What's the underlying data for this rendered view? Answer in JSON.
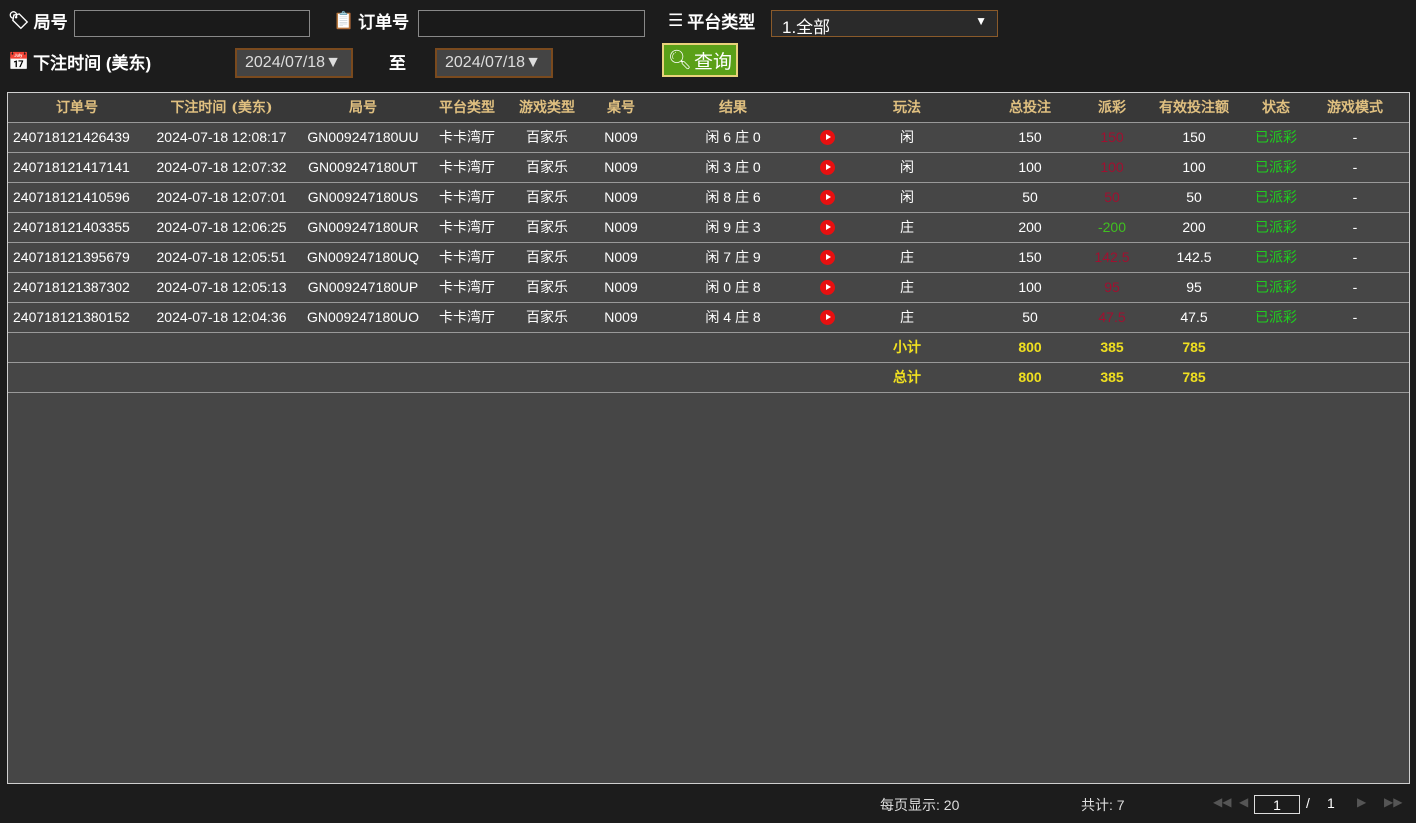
{
  "filters": {
    "round_label": "局号",
    "round_value": "",
    "order_label": "订单号",
    "order_value": "",
    "platform_label": "平台类型",
    "platform_value": "1.全部",
    "time_label": "下注时间 (美东)",
    "date_from": "2024/07/18▼",
    "to_label": "至",
    "date_to": "2024/07/18▼",
    "query_label": "查询"
  },
  "table": {
    "headers": [
      "订单号",
      "下注时间 (美东)",
      "局号",
      "平台类型",
      "游戏类型",
      "桌号",
      "结果",
      "",
      "玩法",
      "总投注",
      "派彩",
      "有效投注额",
      "状态",
      "游戏模式"
    ],
    "rows": [
      [
        "240718121426439",
        "2024-07-18 12:08:17",
        "GN009247180UU",
        "卡卡湾厅",
        "百家乐",
        "N009",
        "闲 6 庄 0",
        "闲",
        "150",
        "150",
        "150",
        "已派彩",
        "-"
      ],
      [
        "240718121417141",
        "2024-07-18 12:07:32",
        "GN009247180UT",
        "卡卡湾厅",
        "百家乐",
        "N009",
        "闲 3 庄 0",
        "闲",
        "100",
        "100",
        "100",
        "已派彩",
        "-"
      ],
      [
        "240718121410596",
        "2024-07-18 12:07:01",
        "GN009247180US",
        "卡卡湾厅",
        "百家乐",
        "N009",
        "闲 8 庄 6",
        "闲",
        "50",
        "50",
        "50",
        "已派彩",
        "-"
      ],
      [
        "240718121403355",
        "2024-07-18 12:06:25",
        "GN009247180UR",
        "卡卡湾厅",
        "百家乐",
        "N009",
        "闲 9 庄 3",
        "庄",
        "200",
        "-200",
        "200",
        "已派彩",
        "-"
      ],
      [
        "240718121395679",
        "2024-07-18 12:05:51",
        "GN009247180UQ",
        "卡卡湾厅",
        "百家乐",
        "N009",
        "闲 7 庄 9",
        "庄",
        "150",
        "142.5",
        "142.5",
        "已派彩",
        "-"
      ],
      [
        "240718121387302",
        "2024-07-18 12:05:13",
        "GN009247180UP",
        "卡卡湾厅",
        "百家乐",
        "N009",
        "闲 0 庄 8",
        "庄",
        "100",
        "95",
        "95",
        "已派彩",
        "-"
      ],
      [
        "240718121380152",
        "2024-07-18 12:04:36",
        "GN009247180UO",
        "卡卡湾厅",
        "百家乐",
        "N009",
        "闲 4 庄 8",
        "庄",
        "50",
        "47.5",
        "47.5",
        "已派彩",
        "-"
      ]
    ],
    "subtotal": {
      "label": "小计",
      "total_bet": "800",
      "payout": "385",
      "valid_bet": "785"
    },
    "total": {
      "label": "总计",
      "total_bet": "800",
      "payout": "385",
      "valid_bet": "785"
    }
  },
  "footer": {
    "per_page": "每页显示: 20",
    "count": "共计: 7",
    "page": "1",
    "page_sep": "/",
    "total_pages": "1"
  },
  "colors": {
    "accent": "#5aa018",
    "header_text": "#e0c080",
    "win": "#a01030",
    "loss": "#40c020",
    "status": "#1ed01e",
    "total": "#f0e020"
  }
}
